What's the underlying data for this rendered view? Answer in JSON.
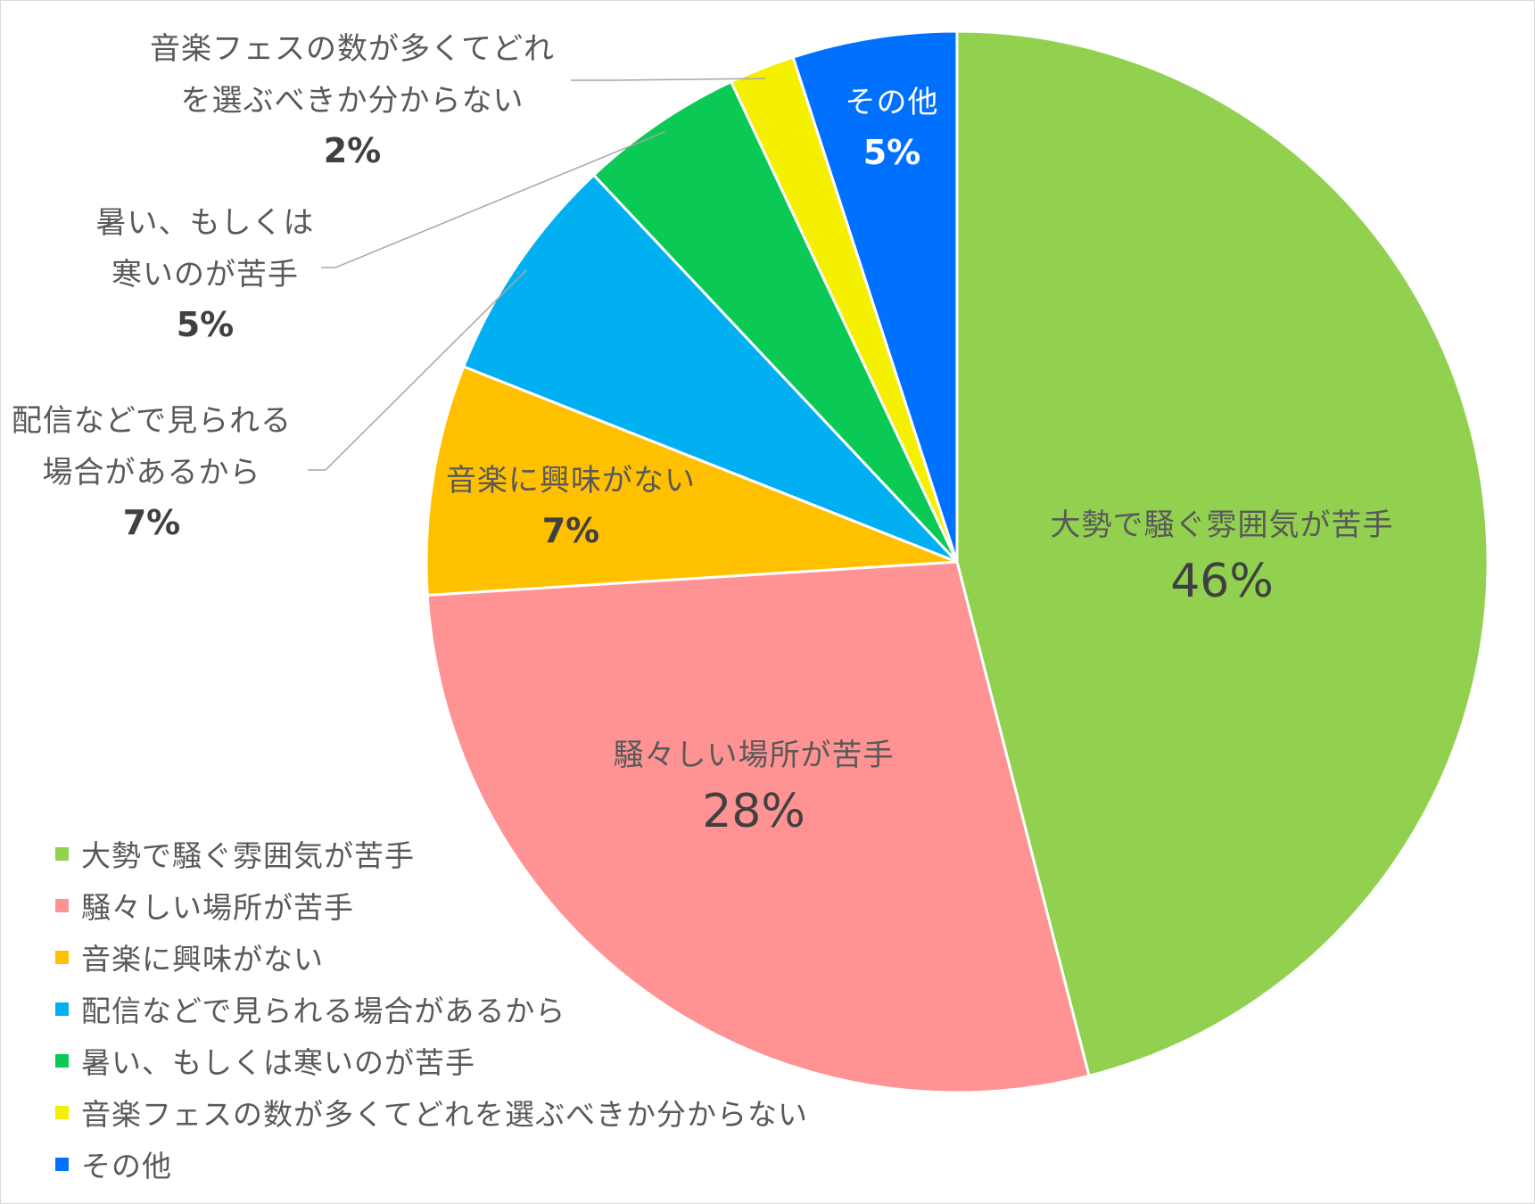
{
  "chart_data": {
    "type": "pie",
    "title": "",
    "categories": [
      "大勢で騒ぐ雰囲気が苦手",
      "騒々しい場所が苦手",
      "音楽に興味がない",
      "配信などで見られる場合があるから",
      "暑い、もしくは寒いのが苦手",
      "音楽フェスの数が多くてどれを選ぶべきか分からない",
      "その他"
    ],
    "values": [
      46,
      28,
      7,
      7,
      5,
      2,
      5
    ],
    "colors": [
      "#92d050",
      "#ff9393",
      "#ffc000",
      "#00b0f0",
      "#0ac955",
      "#f5f000",
      "#0070ff"
    ],
    "start": "12 o'clock",
    "direction": "clockwise",
    "legend_position": "bottom-left"
  },
  "slice_labels": [
    {
      "lines": [
        "大勢で騒ぐ雰囲気が苦手"
      ],
      "pct": "46%"
    },
    {
      "lines": [
        "騒々しい場所が苦手"
      ],
      "pct": "28%"
    },
    {
      "lines": [
        "音楽に興味がない"
      ],
      "pct": "7%"
    },
    {
      "lines": [
        "配信などで見られる",
        "場合があるから"
      ],
      "pct": "7%"
    },
    {
      "lines": [
        "暑い、もしくは",
        "寒いのが苦手"
      ],
      "pct": "5%"
    },
    {
      "lines": [
        "音楽フェスの数が多くてどれ",
        "を選ぶべきか分からない"
      ],
      "pct": "2%"
    },
    {
      "lines": [
        "その他"
      ],
      "pct": "5%"
    }
  ]
}
